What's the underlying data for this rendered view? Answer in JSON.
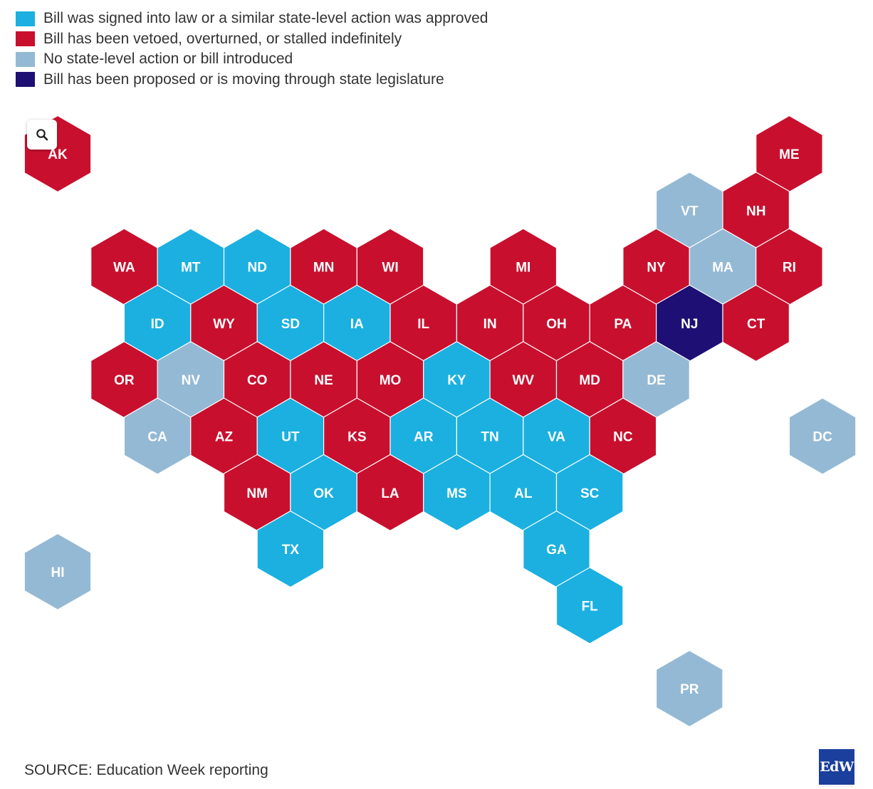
{
  "legend": {
    "items": [
      {
        "key": "signed",
        "label": "Bill was signed into law or a similar state-level action was approved",
        "color": "#1bb0e0"
      },
      {
        "key": "vetoed",
        "label": "Bill has been vetoed, overturned, or stalled indefinitely",
        "color": "#c8102e"
      },
      {
        "key": "none",
        "label": "No state-level action or bill introduced",
        "color": "#94b9d4"
      },
      {
        "key": "proposed",
        "label": "Bill has been proposed or is moving through state legislature",
        "color": "#1d0f73"
      }
    ]
  },
  "zoom_control": {
    "icon": "search-icon"
  },
  "map": {
    "states": [
      {
        "abbr": "AK",
        "row": 0,
        "col": 0,
        "status": "vetoed"
      },
      {
        "abbr": "ME",
        "row": 0,
        "col": 11,
        "status": "vetoed"
      },
      {
        "abbr": "VT",
        "row": 1,
        "col": 9.5,
        "status": "none"
      },
      {
        "abbr": "NH",
        "row": 1,
        "col": 10.5,
        "status": "vetoed"
      },
      {
        "abbr": "WA",
        "row": 2,
        "col": 1,
        "status": "vetoed"
      },
      {
        "abbr": "MT",
        "row": 2,
        "col": 2,
        "status": "signed"
      },
      {
        "abbr": "ND",
        "row": 2,
        "col": 3,
        "status": "signed"
      },
      {
        "abbr": "MN",
        "row": 2,
        "col": 4,
        "status": "vetoed"
      },
      {
        "abbr": "WI",
        "row": 2,
        "col": 5,
        "status": "vetoed"
      },
      {
        "abbr": "MI",
        "row": 2,
        "col": 7,
        "status": "vetoed"
      },
      {
        "abbr": "NY",
        "row": 2,
        "col": 9,
        "status": "vetoed"
      },
      {
        "abbr": "MA",
        "row": 2,
        "col": 10,
        "status": "none"
      },
      {
        "abbr": "RI",
        "row": 2,
        "col": 11,
        "status": "vetoed"
      },
      {
        "abbr": "ID",
        "row": 3,
        "col": 1.5,
        "status": "signed"
      },
      {
        "abbr": "WY",
        "row": 3,
        "col": 2.5,
        "status": "vetoed"
      },
      {
        "abbr": "SD",
        "row": 3,
        "col": 3.5,
        "status": "signed"
      },
      {
        "abbr": "IA",
        "row": 3,
        "col": 4.5,
        "status": "signed"
      },
      {
        "abbr": "IL",
        "row": 3,
        "col": 5.5,
        "status": "vetoed"
      },
      {
        "abbr": "IN",
        "row": 3,
        "col": 6.5,
        "status": "vetoed"
      },
      {
        "abbr": "OH",
        "row": 3,
        "col": 7.5,
        "status": "vetoed"
      },
      {
        "abbr": "PA",
        "row": 3,
        "col": 8.5,
        "status": "vetoed"
      },
      {
        "abbr": "NJ",
        "row": 3,
        "col": 9.5,
        "status": "proposed"
      },
      {
        "abbr": "CT",
        "row": 3,
        "col": 10.5,
        "status": "vetoed"
      },
      {
        "abbr": "OR",
        "row": 4,
        "col": 1,
        "status": "vetoed"
      },
      {
        "abbr": "NV",
        "row": 4,
        "col": 2,
        "status": "none"
      },
      {
        "abbr": "CO",
        "row": 4,
        "col": 3,
        "status": "vetoed"
      },
      {
        "abbr": "NE",
        "row": 4,
        "col": 4,
        "status": "vetoed"
      },
      {
        "abbr": "MO",
        "row": 4,
        "col": 5,
        "status": "vetoed"
      },
      {
        "abbr": "KY",
        "row": 4,
        "col": 6,
        "status": "signed"
      },
      {
        "abbr": "WV",
        "row": 4,
        "col": 7,
        "status": "vetoed"
      },
      {
        "abbr": "MD",
        "row": 4,
        "col": 8,
        "status": "vetoed"
      },
      {
        "abbr": "DE",
        "row": 4,
        "col": 9,
        "status": "none"
      },
      {
        "abbr": "CA",
        "row": 5,
        "col": 1.5,
        "status": "none"
      },
      {
        "abbr": "AZ",
        "row": 5,
        "col": 2.5,
        "status": "vetoed"
      },
      {
        "abbr": "UT",
        "row": 5,
        "col": 3.5,
        "status": "signed"
      },
      {
        "abbr": "KS",
        "row": 5,
        "col": 4.5,
        "status": "vetoed"
      },
      {
        "abbr": "AR",
        "row": 5,
        "col": 5.5,
        "status": "signed"
      },
      {
        "abbr": "TN",
        "row": 5,
        "col": 6.5,
        "status": "signed"
      },
      {
        "abbr": "VA",
        "row": 5,
        "col": 7.5,
        "status": "signed"
      },
      {
        "abbr": "NC",
        "row": 5,
        "col": 8.5,
        "status": "vetoed"
      },
      {
        "abbr": "DC",
        "row": 5,
        "col": 11.5,
        "status": "none"
      },
      {
        "abbr": "NM",
        "row": 6,
        "col": 3,
        "status": "vetoed"
      },
      {
        "abbr": "OK",
        "row": 6,
        "col": 4,
        "status": "signed"
      },
      {
        "abbr": "LA",
        "row": 6,
        "col": 5,
        "status": "vetoed"
      },
      {
        "abbr": "MS",
        "row": 6,
        "col": 6,
        "status": "signed"
      },
      {
        "abbr": "AL",
        "row": 6,
        "col": 7,
        "status": "signed"
      },
      {
        "abbr": "SC",
        "row": 6,
        "col": 8,
        "status": "signed"
      },
      {
        "abbr": "TX",
        "row": 7,
        "col": 3.5,
        "status": "signed"
      },
      {
        "abbr": "GA",
        "row": 7,
        "col": 7.5,
        "status": "signed"
      },
      {
        "abbr": "HI",
        "row": 7.4,
        "col": 0,
        "status": "none"
      },
      {
        "abbr": "FL",
        "row": 8,
        "col": 8,
        "status": "signed"
      },
      {
        "abbr": "PR",
        "row": 9.47,
        "col": 9.5,
        "status": "none"
      }
    ]
  },
  "source": "SOURCE: Education Week reporting",
  "logo": {
    "text": "EdW"
  }
}
